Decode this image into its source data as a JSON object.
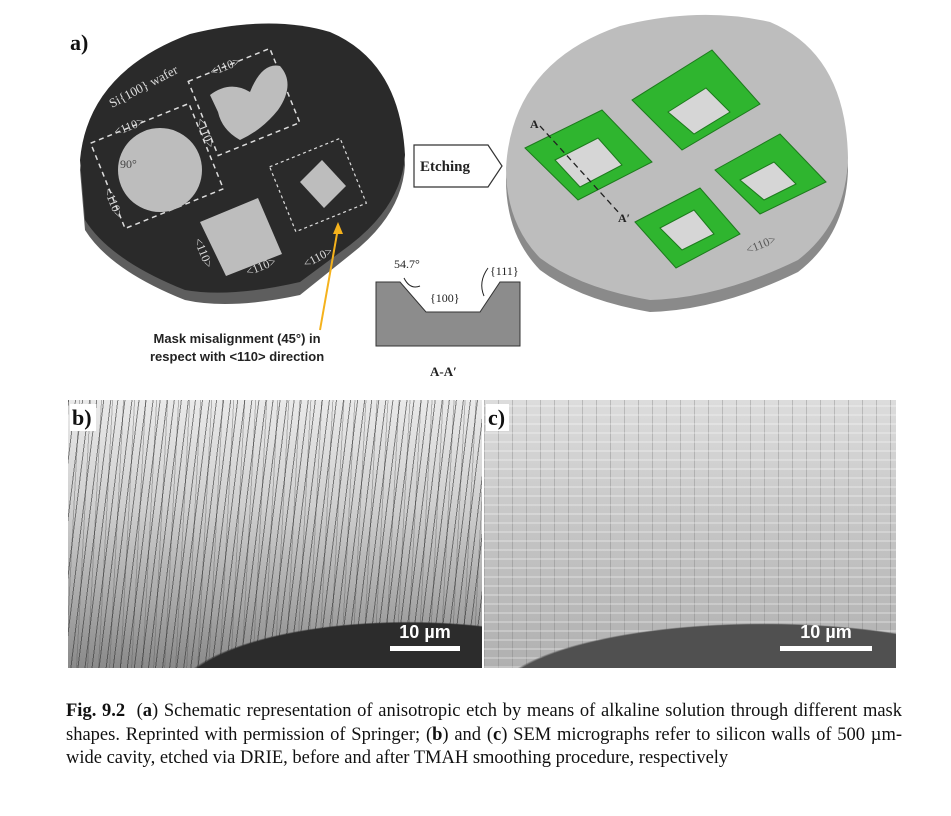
{
  "panel_a": {
    "label": "a)",
    "wafer_label": "Si{100} wafer",
    "dir_110": "<110>",
    "angle_90": "90°",
    "etching_label": "Etching",
    "section_A": "A",
    "section_A_prime": "A′",
    "angle_547": "54.7°",
    "plane_111": "{111}",
    "plane_100": "{100}",
    "section_title": "A-A′",
    "misalignment_line1": "Mask misalignment (45°) in",
    "misalignment_line2": "respect with <110> direction",
    "colors": {
      "wafer_dark": "#2a2a2a",
      "wafer_grey": "#bdbdbd",
      "etch_green": "#2fb52f",
      "arrow": "#f5b21c"
    }
  },
  "panel_b": {
    "label": "b)",
    "scale": "10 µm"
  },
  "panel_c": {
    "label": "c)",
    "scale": "10 µm"
  },
  "caption": {
    "fig": "Fig. 9.2",
    "p1": "(",
    "a": "a",
    "p2": ") Schematic representation of anisotropic etch by means of alkaline solution through different mask shapes. Reprinted with permission of Springer; (",
    "b": "b",
    "p3": ") and (",
    "c": "c",
    "p4": ") SEM micrographs refer to silicon walls of 500 µm-wide cavity, etched via DRIE, before and after TMAH smoothing procedure, respectively"
  }
}
